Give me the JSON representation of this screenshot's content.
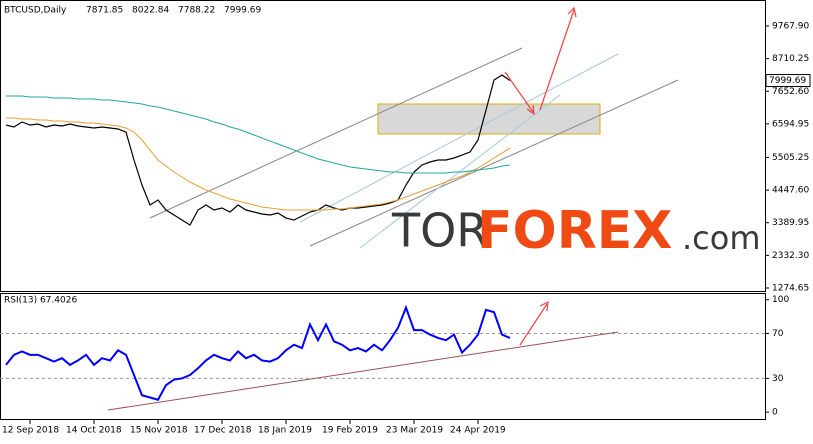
{
  "chart_data": [
    {
      "type": "line",
      "title": "BTCUSD,Daily",
      "ohlc": [
        7871.85,
        8022.84,
        7788.22,
        7999.69
      ],
      "categories": [
        null,
        null,
        null,
        "12 Sep 2018",
        null,
        null,
        null,
        null,
        null,
        null,
        null,
        "14 Oct 2018",
        null,
        null,
        null,
        null,
        null,
        null,
        null,
        "15 Nov 2018",
        null,
        null,
        null,
        null,
        null,
        null,
        null,
        "17 Dec 2018",
        null,
        null,
        null,
        null,
        null,
        null,
        null,
        "18 Jan 2019",
        null,
        null,
        null,
        null,
        null,
        null,
        null,
        "19 Feb 2019",
        null,
        null,
        null,
        null,
        null,
        null,
        null,
        "23 Mar 2019",
        null,
        null,
        null,
        null,
        null,
        null,
        null,
        "24 Apr 2019",
        null,
        null,
        null,
        null
      ],
      "series": [
        {
          "color": "#000000",
          "values": [
            6558,
            6494,
            6656,
            6558,
            6591,
            6494,
            6558,
            6526,
            6591,
            6526,
            6494,
            6461,
            6494,
            6461,
            6429,
            6331,
            5424,
            4613,
            3965,
            4127,
            3803,
            3641,
            3478,
            3316,
            3803,
            3965,
            3803,
            3868,
            3738,
            3965,
            3803,
            3738,
            3673,
            3641,
            3706,
            3543,
            3478,
            3608,
            3738,
            3803,
            3965,
            3868,
            3803,
            3868,
            3868,
            3900,
            3932,
            3965,
            4030,
            4127,
            4613,
            5035,
            5262,
            5359,
            5424,
            5424,
            5489,
            5586,
            5683,
            6072,
            7045,
            8017,
            8179,
            8000
          ]
        },
        {
          "color": "#e8a030",
          "values": [
            6785,
            6785,
            6752,
            6752,
            6720,
            6720,
            6688,
            6688,
            6656,
            6656,
            6623,
            6623,
            6591,
            6558,
            6526,
            6461,
            6331,
            6072,
            5748,
            5424,
            5229,
            5035,
            4873,
            4710,
            4581,
            4451,
            4354,
            4257,
            4159,
            4095,
            4030,
            3965,
            3900,
            3868,
            3835,
            3803,
            3803,
            3803,
            3803,
            3803,
            3803,
            3835,
            3835,
            3868,
            3900,
            3932,
            3965,
            3997,
            4062,
            4127,
            4224,
            4321,
            4419,
            4516,
            4613,
            4710,
            4808,
            4905,
            5035,
            5165,
            5326,
            5489,
            5650,
            5813
          ]
        },
        {
          "color": "#20a8a0",
          "values": [
            7499,
            7499,
            7499,
            7466,
            7466,
            7466,
            7434,
            7434,
            7434,
            7401,
            7401,
            7401,
            7369,
            7369,
            7336,
            7304,
            7272,
            7239,
            7174,
            7142,
            7077,
            7012,
            6947,
            6882,
            6818,
            6753,
            6656,
            6591,
            6493,
            6429,
            6331,
            6234,
            6137,
            6039,
            5942,
            5845,
            5748,
            5650,
            5553,
            5456,
            5391,
            5326,
            5261,
            5197,
            5164,
            5132,
            5099,
            5067,
            5034,
            5034,
            5002,
            5002,
            5002,
            5002,
            5002,
            5002,
            5034,
            5034,
            5067,
            5099,
            5132,
            5164,
            5229,
            5261
          ]
        }
      ],
      "ylim": [
        1145,
        10546
      ],
      "yticks": [
        {
          "value": 9767.9,
          "label": "9767.90"
        },
        8710.25,
        {
          "value": 7652.6,
          "label": "7652.60"
        },
        6594.95,
        5505.25,
        {
          "value": 4447.6,
          "label": "4447.60"
        },
        3389.95,
        {
          "value": 2332.3,
          "label": "2332.30"
        },
        1274.65
      ],
      "grid": false
    },
    {
      "type": "line",
      "title": "RSI(13) 67.4026",
      "series": [
        {
          "color": "#0000ff",
          "values": [
            42,
            51,
            54,
            51,
            51,
            48,
            45,
            48,
            42,
            46,
            51,
            42,
            48,
            46,
            55,
            51,
            33,
            15,
            13,
            11,
            24,
            29,
            30,
            33,
            39,
            46,
            51,
            48,
            46,
            54,
            48,
            51,
            46,
            45,
            48,
            55,
            60,
            57,
            78,
            64,
            78,
            63,
            60,
            55,
            57,
            54,
            60,
            55,
            64,
            75,
            93,
            73,
            73,
            69,
            66,
            64,
            69,
            53,
            60,
            69,
            91,
            89,
            69,
            66
          ]
        }
      ],
      "ylim": [
        -7,
        106
      ],
      "yticks": [
        0,
        30,
        70,
        100
      ],
      "levels": [
        30,
        70
      ]
    }
  ],
  "watermark": {
    "part1": "TOR",
    "part2": "FOREX",
    "part3": ".com"
  }
}
